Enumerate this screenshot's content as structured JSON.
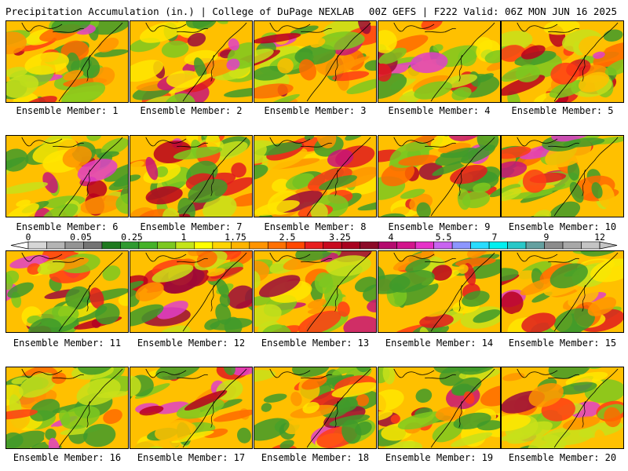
{
  "header": {
    "left": "Precipitation Accumulation (in.) | College of DuPage NEXLAB",
    "right": "00Z GEFS | F222 Valid: 06Z MON JUN 16 2025"
  },
  "colorbar": {
    "labels": [
      "0",
      "0.05",
      "0.25",
      "1",
      "1.75",
      "2.5",
      "3.25",
      "4",
      "5.5",
      "7",
      "9",
      "12"
    ],
    "colors": [
      "#d6d6d6",
      "#b4b4b4",
      "#949494",
      "#747474",
      "#1f7a1f",
      "#2f9a2f",
      "#45b228",
      "#7cc820",
      "#c4e41a",
      "#ffff00",
      "#ffd400",
      "#ffb400",
      "#ff9400",
      "#ff7000",
      "#ff4800",
      "#e81e1e",
      "#c80a1e",
      "#a8001e",
      "#8c0a28",
      "#b40a6e",
      "#d2148c",
      "#e632c8",
      "#c864f0",
      "#8c96ff",
      "#28dcff",
      "#00f0f0",
      "#28c8c8",
      "#64a0a0",
      "#8c8c8c",
      "#a8a8a8",
      "#c4c4c4"
    ]
  },
  "panels": [
    {
      "member": 1,
      "caption": "Ensemble Member: 1"
    },
    {
      "member": 2,
      "caption": "Ensemble Member: 2"
    },
    {
      "member": 3,
      "caption": "Ensemble Member: 3"
    },
    {
      "member": 4,
      "caption": "Ensemble Member: 4"
    },
    {
      "member": 5,
      "caption": "Ensemble Member: 5"
    },
    {
      "member": 6,
      "caption": "Ensemble Member: 6"
    },
    {
      "member": 7,
      "caption": "Ensemble Member: 7"
    },
    {
      "member": 8,
      "caption": "Ensemble Member: 8"
    },
    {
      "member": 9,
      "caption": "Ensemble Member: 9"
    },
    {
      "member": 10,
      "caption": "Ensemble Member: 10"
    },
    {
      "member": 11,
      "caption": "Ensemble Member: 11"
    },
    {
      "member": 12,
      "caption": "Ensemble Member: 12"
    },
    {
      "member": 13,
      "caption": "Ensemble Member: 13"
    },
    {
      "member": 14,
      "caption": "Ensemble Member: 14"
    },
    {
      "member": 15,
      "caption": "Ensemble Member: 15"
    },
    {
      "member": 16,
      "caption": "Ensemble Member: 16"
    },
    {
      "member": 17,
      "caption": "Ensemble Member: 17"
    },
    {
      "member": 18,
      "caption": "Ensemble Member: 18"
    },
    {
      "member": 19,
      "caption": "Ensemble Member: 19"
    },
    {
      "member": 20,
      "caption": "Ensemble Member: 20"
    }
  ]
}
